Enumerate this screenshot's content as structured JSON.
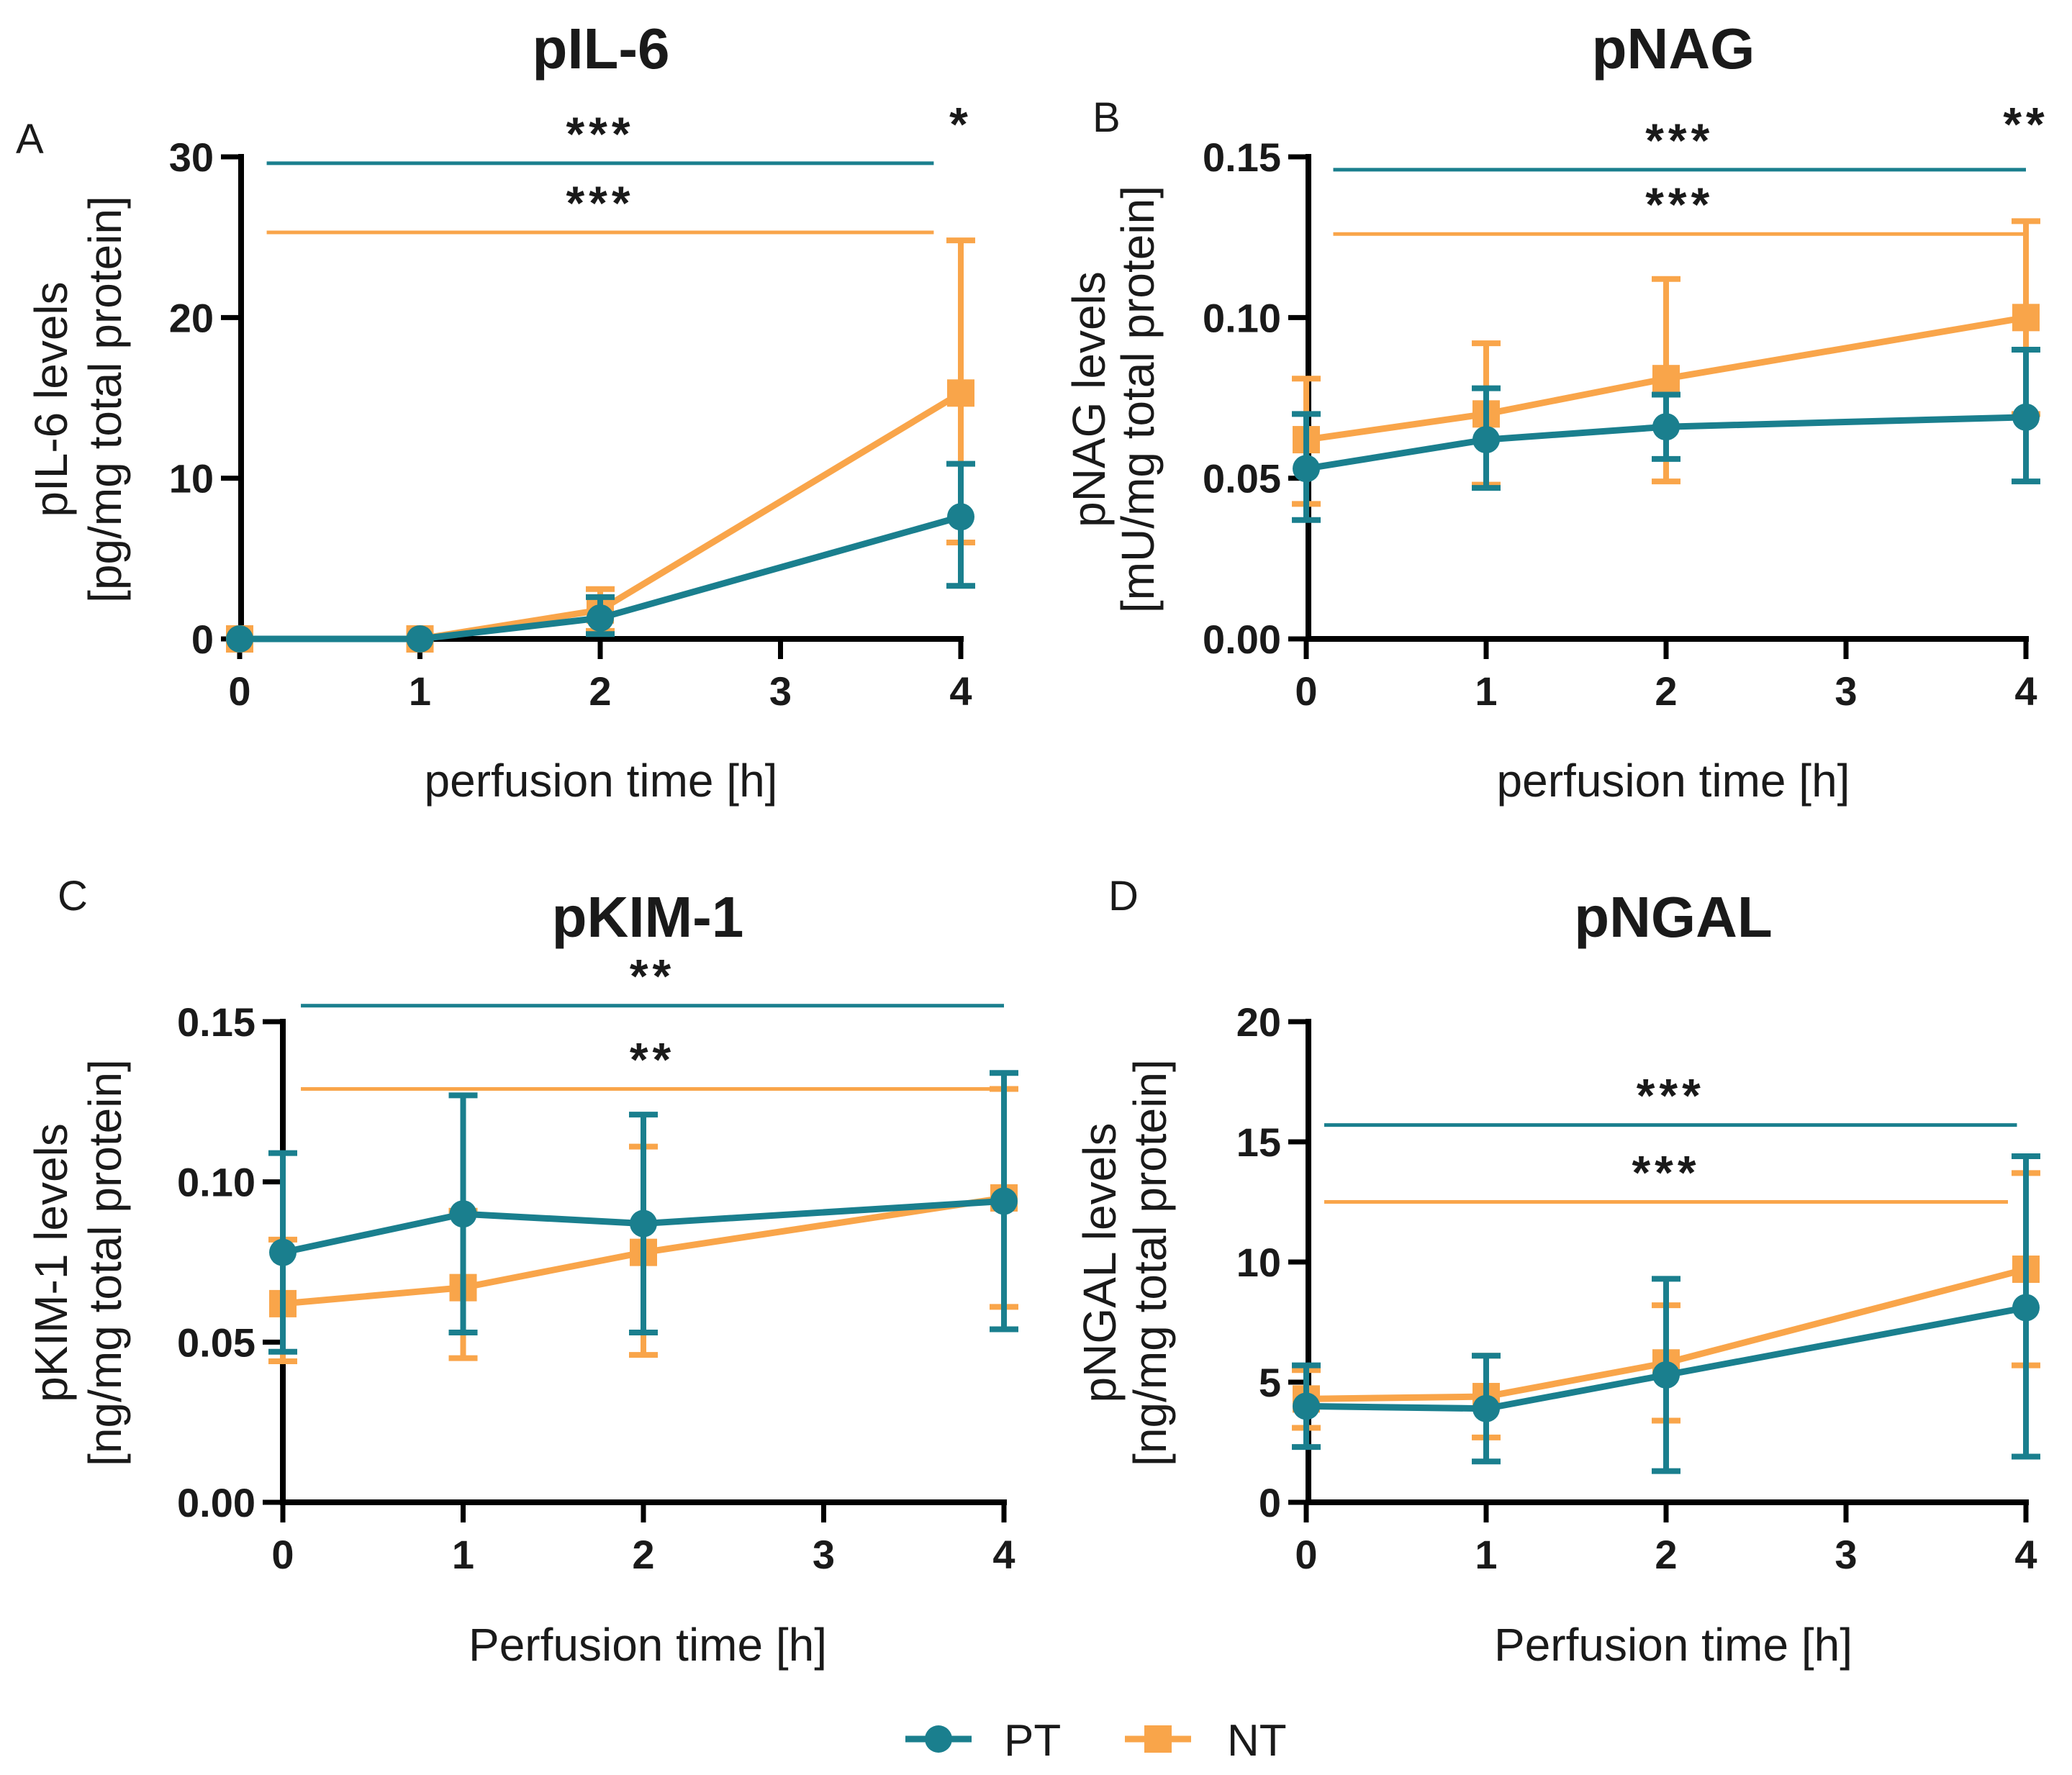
{
  "colors": {
    "PT": "#1a7f8e",
    "NT": "#f9a54a",
    "axis": "#000000"
  },
  "legend": [
    {
      "key": "PT",
      "label": "PT",
      "marker": "circle"
    },
    {
      "key": "NT",
      "label": "NT",
      "marker": "square"
    }
  ],
  "chart_data": [
    {
      "panel": "A",
      "type": "line",
      "title": "pIL-6",
      "xlabel": "perfusion time [h]",
      "ylabel": [
        "pIL-6 levels",
        "[pg/mg total protein]"
      ],
      "x": [
        0,
        1,
        2,
        4
      ],
      "xticks": [
        0,
        1,
        2,
        3,
        4
      ],
      "xlim": [
        0,
        4
      ],
      "ylim": [
        0,
        30
      ],
      "yticks": [
        "0",
        "10",
        "20",
        "30"
      ],
      "series": [
        {
          "name": "PT",
          "values": [
            0,
            0,
            1.3,
            7.6
          ],
          "err_low": [
            0,
            0,
            1.0,
            4.3
          ],
          "err_high": [
            0,
            0,
            1.3,
            3.3
          ]
        },
        {
          "name": "NT",
          "values": [
            0,
            0,
            1.8,
            15.3
          ],
          "err_low": [
            0,
            0,
            1.3,
            9.3
          ],
          "err_high": [
            0,
            0,
            1.3,
            9.5
          ]
        }
      ],
      "significance": [
        {
          "series": "PT",
          "label": "***",
          "y": 29.6,
          "x_from": 0.15,
          "x_to": 3.85
        },
        {
          "series": "NT",
          "label": "***",
          "y": 25.3,
          "x_from": 0.15,
          "x_to": 3.85
        },
        {
          "series": null,
          "label": "*",
          "x": 4,
          "y": 31
        }
      ]
    },
    {
      "panel": "B",
      "type": "line",
      "title": "pNAG",
      "xlabel": "perfusion time [h]",
      "ylabel": [
        "pNAG levels",
        "[mU/mg total protein]"
      ],
      "x": [
        0,
        1,
        2,
        4
      ],
      "xticks": [
        0,
        1,
        2,
        3,
        4
      ],
      "xlim": [
        0,
        4
      ],
      "ylim": [
        0,
        0.15
      ],
      "yticks": [
        "0.00",
        "0.05",
        "0.10",
        "0.15"
      ],
      "series": [
        {
          "name": "PT",
          "values": [
            0.053,
            0.062,
            0.066,
            0.069
          ],
          "err_low": [
            0.016,
            0.015,
            0.01,
            0.02
          ],
          "err_high": [
            0.017,
            0.016,
            0.01,
            0.021
          ]
        },
        {
          "name": "NT",
          "values": [
            0.062,
            0.07,
            0.081,
            0.1
          ],
          "err_low": [
            0.02,
            0.022,
            0.032,
            0.03
          ],
          "err_high": [
            0.019,
            0.022,
            0.031,
            0.03
          ]
        }
      ],
      "significance": [
        {
          "series": "PT",
          "label": "***",
          "y": 0.146,
          "x_from": 0.15,
          "x_to": 4.0
        },
        {
          "series": "NT",
          "label": "***",
          "y": 0.126,
          "x_from": 0.15,
          "x_to": 4.0
        },
        {
          "series": null,
          "label": "**",
          "x": 4,
          "y": 0.155
        }
      ]
    },
    {
      "panel": "C",
      "type": "line",
      "title": "pKIM-1",
      "xlabel": "Perfusion time [h]",
      "ylabel": [
        "pKIM-1 levels",
        "[ng/mg total protein]"
      ],
      "x": [
        0,
        1,
        2,
        4
      ],
      "xticks": [
        0,
        1,
        2,
        3,
        4
      ],
      "xlim": [
        0,
        4
      ],
      "ylim": [
        0,
        0.15
      ],
      "yticks": [
        "0.00",
        "0.05",
        "0.10",
        "0.15"
      ],
      "series": [
        {
          "name": "PT",
          "values": [
            0.078,
            0.09,
            0.087,
            0.094
          ],
          "err_low": [
            0.031,
            0.037,
            0.034,
            0.04
          ],
          "err_high": [
            0.031,
            0.037,
            0.034,
            0.04
          ]
        },
        {
          "name": "NT",
          "values": [
            0.062,
            0.067,
            0.078,
            0.095
          ],
          "err_low": [
            0.018,
            0.022,
            0.032,
            0.034
          ],
          "err_high": [
            0.02,
            0.024,
            0.033,
            0.034
          ]
        }
      ],
      "significance": [
        {
          "series": "PT",
          "label": "**",
          "y": 0.155,
          "x_from": 0.1,
          "x_to": 4.0
        },
        {
          "series": "NT",
          "label": "**",
          "y": 0.129,
          "x_from": 0.1,
          "x_to": 4.0
        }
      ]
    },
    {
      "panel": "D",
      "type": "line",
      "title": "pNGAL",
      "xlabel": "Perfusion time [h]",
      "ylabel": [
        "pNGAL levels",
        "[ng/mg total protein]"
      ],
      "x": [
        0,
        1,
        2,
        4
      ],
      "xticks": [
        0,
        1,
        2,
        3,
        4
      ],
      "xlim": [
        0,
        4
      ],
      "ylim": [
        0,
        20
      ],
      "yticks": [
        "0",
        "5",
        "10",
        "15",
        "20"
      ],
      "series": [
        {
          "name": "PT",
          "values": [
            4.0,
            3.9,
            5.3,
            8.1
          ],
          "err_low": [
            1.7,
            2.2,
            4.0,
            6.2
          ],
          "err_high": [
            1.7,
            2.2,
            4.0,
            6.3
          ]
        },
        {
          "name": "NT",
          "values": [
            4.3,
            4.4,
            5.8,
            9.7
          ],
          "err_low": [
            1.2,
            1.7,
            2.4,
            4.0
          ],
          "err_high": [
            1.2,
            1.7,
            2.4,
            4.0
          ]
        }
      ],
      "significance": [
        {
          "series": "PT",
          "label": "***",
          "y": 15.7,
          "x_from": 0.1,
          "x_to": 3.95
        },
        {
          "series": "NT",
          "label": "***",
          "y": 12.5,
          "x_from": 0.1,
          "x_to": 3.9
        }
      ]
    }
  ]
}
